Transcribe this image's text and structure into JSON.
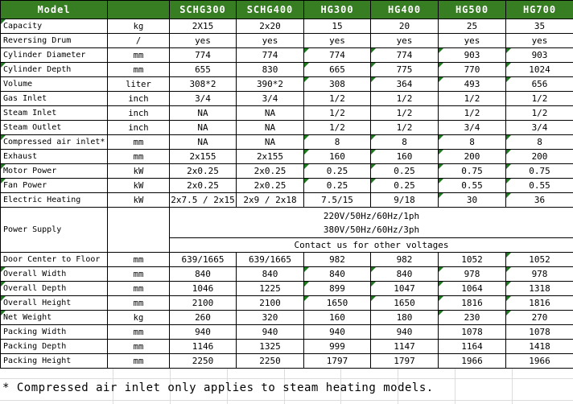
{
  "table": {
    "header": {
      "model_label": "Model",
      "unit_header": "",
      "columns": [
        "SCHG300",
        "SCHG400",
        "HG300",
        "HG400",
        "HG500",
        "HG700"
      ]
    },
    "rows": [
      {
        "label": "Capacity",
        "unit": "kg",
        "values": [
          "2X15",
          "2x20",
          "15",
          "20",
          "25",
          "35"
        ],
        "label_flag": true,
        "value_flags": [
          0,
          0,
          0,
          0,
          0,
          0
        ]
      },
      {
        "label": "Reversing Drum",
        "unit": "/",
        "values": [
          "yes",
          "yes",
          "yes",
          "yes",
          "yes",
          "yes"
        ],
        "label_flag": false,
        "value_flags": [
          0,
          0,
          0,
          0,
          0,
          0
        ]
      },
      {
        "label": "Cylinder Diameter",
        "unit": "mm",
        "values": [
          "774",
          "774",
          "774",
          "774",
          "903",
          "903"
        ],
        "label_flag": false,
        "value_flags": [
          0,
          0,
          1,
          1,
          1,
          1
        ]
      },
      {
        "label": "Cylinder Depth",
        "unit": "mm",
        "values": [
          "655",
          "830",
          "665",
          "775",
          "770",
          "1024"
        ],
        "label_flag": true,
        "value_flags": [
          0,
          0,
          1,
          1,
          1,
          1
        ]
      },
      {
        "label": "Volume",
        "unit": "liter",
        "values": [
          "308*2",
          "390*2",
          "308",
          "364",
          "493",
          "656"
        ],
        "label_flag": false,
        "value_flags": [
          0,
          0,
          1,
          1,
          1,
          1
        ]
      },
      {
        "label": "Gas Inlet",
        "unit": "inch",
        "values": [
          "3/4",
          "3/4",
          "1/2",
          "1/2",
          "1/2",
          "1/2"
        ],
        "label_flag": false,
        "value_flags": [
          0,
          0,
          0,
          0,
          0,
          0
        ]
      },
      {
        "label": "Steam Inlet",
        "unit": "inch",
        "values": [
          "NA",
          "NA",
          "1/2",
          "1/2",
          "1/2",
          "1/2"
        ],
        "label_flag": false,
        "value_flags": [
          0,
          0,
          0,
          0,
          0,
          0
        ]
      },
      {
        "label": "Steam Outlet",
        "unit": "inch",
        "values": [
          "NA",
          "NA",
          "1/2",
          "1/2",
          "3/4",
          "3/4"
        ],
        "label_flag": false,
        "value_flags": [
          0,
          0,
          0,
          0,
          0,
          0
        ]
      },
      {
        "label": "Compressed air inlet*",
        "unit": "mm",
        "values": [
          "NA",
          "NA",
          "8",
          "8",
          "8",
          "8"
        ],
        "label_flag": true,
        "value_flags": [
          0,
          0,
          1,
          1,
          1,
          1
        ]
      },
      {
        "label": "Exhaust",
        "unit": "mm",
        "values": [
          "2x155",
          "2x155",
          "160",
          "160",
          "200",
          "200"
        ],
        "label_flag": false,
        "value_flags": [
          0,
          0,
          1,
          1,
          1,
          1
        ]
      },
      {
        "label": "Motor Power",
        "unit": "kW",
        "values": [
          "2x0.25",
          "2x0.25",
          "0.25",
          "0.25",
          "0.75",
          "0.75"
        ],
        "label_flag": true,
        "value_flags": [
          0,
          0,
          1,
          1,
          1,
          1
        ]
      },
      {
        "label": "Fan Power",
        "unit": "kW",
        "values": [
          "2x0.25",
          "2x0.25",
          "0.25",
          "0.25",
          "0.55",
          "0.55"
        ],
        "label_flag": true,
        "value_flags": [
          0,
          0,
          1,
          1,
          1,
          1
        ]
      },
      {
        "label": "Electric Heating",
        "unit": "kW",
        "values": [
          "2x7.5 / 2x15",
          "2x9 / 2x18",
          "7.5/15",
          "9/18",
          "30",
          "36"
        ],
        "label_flag": false,
        "value_flags": [
          0,
          0,
          0,
          0,
          1,
          1
        ]
      },
      {
        "power_supply": true,
        "label": "Power Supply",
        "unit": "",
        "lines": [
          "220V/50Hz/60Hz/1ph",
          "380V/50Hz/60Hz/3ph"
        ],
        "contact": "Contact us for other voltages"
      },
      {
        "label": "Door Center to Floor",
        "unit": "mm",
        "values": [
          "639/1665",
          "639/1665",
          "982",
          "982",
          "1052",
          "1052"
        ],
        "label_flag": false,
        "value_flags": [
          0,
          0,
          0,
          0,
          0,
          1
        ]
      },
      {
        "label": "Overall Width",
        "unit": "mm",
        "values": [
          "840",
          "840",
          "840",
          "840",
          "978",
          "978"
        ],
        "label_flag": true,
        "value_flags": [
          0,
          0,
          1,
          1,
          1,
          1
        ]
      },
      {
        "label": "Overall Depth",
        "unit": "mm",
        "values": [
          "1046",
          "1225",
          "899",
          "1047",
          "1064",
          "1318"
        ],
        "label_flag": true,
        "value_flags": [
          0,
          0,
          1,
          1,
          1,
          1
        ]
      },
      {
        "label": "Overall Height",
        "unit": "mm",
        "values": [
          "2100",
          "2100",
          "1650",
          "1650",
          "1816",
          "1816"
        ],
        "label_flag": true,
        "value_flags": [
          0,
          0,
          1,
          1,
          1,
          1
        ]
      },
      {
        "label": "Net Weight",
        "unit": "kg",
        "values": [
          "260",
          "320",
          "160",
          "180",
          "230",
          "270"
        ],
        "label_flag": true,
        "value_flags": [
          0,
          0,
          0,
          0,
          1,
          1
        ]
      },
      {
        "label": "Packing Width",
        "unit": "mm",
        "values": [
          "940",
          "940",
          "940",
          "940",
          "1078",
          "1078"
        ],
        "label_flag": false,
        "value_flags": [
          0,
          0,
          0,
          0,
          0,
          0
        ]
      },
      {
        "label": "Packing Depth",
        "unit": "mm",
        "values": [
          "1146",
          "1325",
          "999",
          "1147",
          "1164",
          "1418"
        ],
        "label_flag": false,
        "value_flags": [
          0,
          0,
          0,
          0,
          0,
          0
        ]
      },
      {
        "label": "Packing Height",
        "unit": "mm",
        "values": [
          "2250",
          "2250",
          "1797",
          "1797",
          "1966",
          "1966"
        ],
        "label_flag": false,
        "value_flags": [
          0,
          0,
          0,
          0,
          0,
          0
        ]
      }
    ]
  },
  "footnote": "* Compressed air inlet only applies to steam heating models.",
  "icons": {
    "comment_indicator": "comment-indicator-triangle"
  },
  "colors": {
    "header_bg": "#377d22",
    "header_text": "#ffffff",
    "border": "#000000",
    "comment_triangle": "#1f7a1f",
    "faint_grid": "#dcdcdc"
  }
}
